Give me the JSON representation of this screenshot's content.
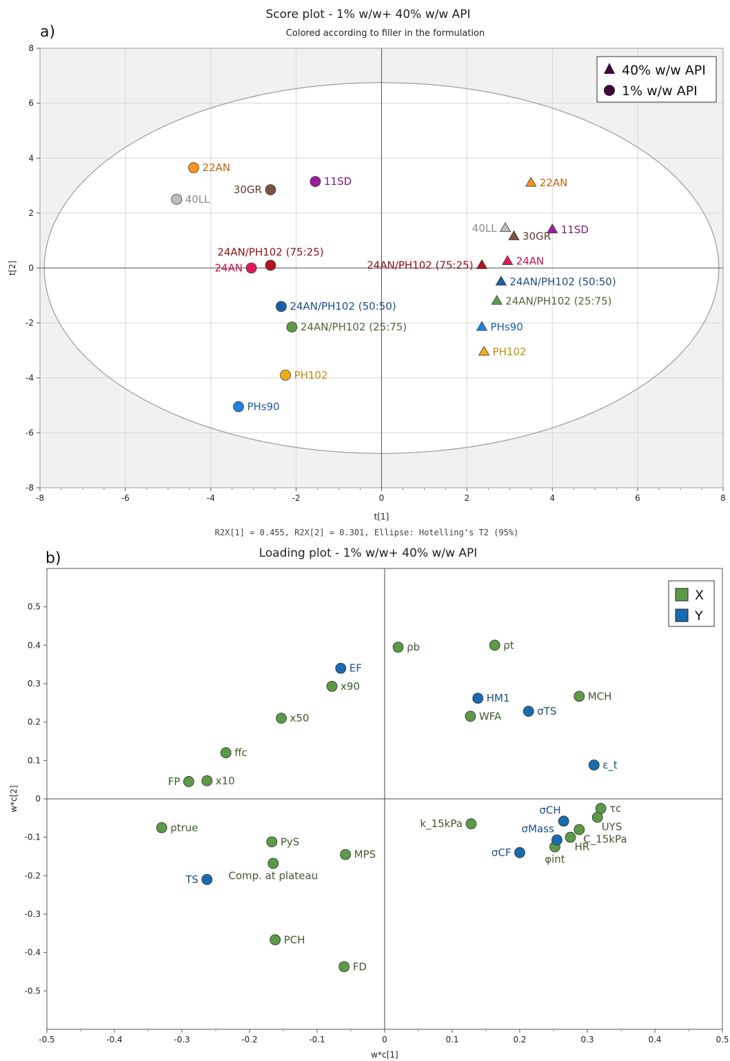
{
  "chart_data": [
    {
      "panel_label": "a)",
      "type": "scatter",
      "title": "Score plot - 1% w/w+ 40% w/w API",
      "subtitle": "Colored according to filler in the formulation",
      "xlabel": "t[1]",
      "ylabel": "t[2]",
      "xlim": [
        -8,
        8
      ],
      "ylim": [
        -8,
        8
      ],
      "xticks": [
        "-8",
        "-6",
        "-4",
        "-2",
        "0",
        "2",
        "4",
        "6",
        "8"
      ],
      "yticks": [
        "8",
        "6",
        "4",
        "2",
        "0",
        "-2",
        "-4",
        "-6",
        "-8"
      ],
      "footnote": "R2X[1] = 0.455, R2X[2] = 0.301, Ellipse: Hotelling's T2 (95%)",
      "ellipse": {
        "rx": 7.9,
        "ry": 6.75
      },
      "grid": true,
      "legend_position": "top-right",
      "legend": [
        {
          "label": "40% w/w API",
          "marker": "triangle",
          "color": "#3d0a3a"
        },
        {
          "label": "1% w/w API",
          "marker": "circle",
          "color": "#3d0a3a"
        }
      ],
      "series": [
        {
          "name": "1% w/w API",
          "marker": "circle",
          "points": [
            {
              "label": "22AN",
              "x": -4.4,
              "y": 3.65,
              "color": "#f7941d",
              "text_color": "#c0650a",
              "anchor": "right"
            },
            {
              "label": "40LL",
              "x": -4.8,
              "y": 2.5,
              "color": "#bdbdbd",
              "text_color": "#8a8a8a",
              "anchor": "right"
            },
            {
              "label": "30GR",
              "x": -2.6,
              "y": 2.85,
              "color": "#7b5343",
              "text_color": "#5e3a2c",
              "anchor": "left"
            },
            {
              "label": "11SD",
              "x": -1.55,
              "y": 3.15,
              "color": "#9a1d9b",
              "text_color": "#7a1a7a",
              "anchor": "right"
            },
            {
              "label": "24AN/PH102 (75:25)",
              "x": -2.6,
              "y": 0.1,
              "color": "#b5121b",
              "text_color": "#8f1010",
              "anchor": "above"
            },
            {
              "label": "24AN",
              "x": -3.05,
              "y": 0.0,
              "color": "#e4175c",
              "text_color": "#c2134e",
              "anchor": "left"
            },
            {
              "label": "24AN/PH102 (50:50)",
              "x": -2.35,
              "y": -1.4,
              "color": "#1a5fa8",
              "text_color": "#1a4f8a",
              "anchor": "right"
            },
            {
              "label": "24AN/PH102 (25:75)",
              "x": -2.1,
              "y": -2.15,
              "color": "#5c9a47",
              "text_color": "#4a6a35",
              "anchor": "right"
            },
            {
              "label": "PH102",
              "x": -2.25,
              "y": -3.9,
              "color": "#f2ad14",
              "text_color": "#c78d0c",
              "anchor": "right"
            },
            {
              "label": "PHs90",
              "x": -3.35,
              "y": -5.05,
              "color": "#1f82e0",
              "text_color": "#1a5fa8",
              "anchor": "right"
            }
          ]
        },
        {
          "name": "40% w/w API",
          "marker": "triangle",
          "points": [
            {
              "label": "22AN",
              "x": 3.5,
              "y": 3.1,
              "color": "#f7941d",
              "text_color": "#c0650a",
              "anchor": "right"
            },
            {
              "label": "40LL",
              "x": 2.9,
              "y": 1.45,
              "color": "#bdbdbd",
              "text_color": "#8a8a8a",
              "anchor": "left"
            },
            {
              "label": "30GR",
              "x": 3.1,
              "y": 1.15,
              "color": "#7b5343",
              "text_color": "#5e3a2c",
              "anchor": "right"
            },
            {
              "label": "11SD",
              "x": 4.0,
              "y": 1.4,
              "color": "#9a1d9b",
              "text_color": "#7a1a7a",
              "anchor": "right"
            },
            {
              "label": "24AN/PH102 (75:25)",
              "x": 2.35,
              "y": 0.1,
              "color": "#b5121b",
              "text_color": "#8f1010",
              "anchor": "left"
            },
            {
              "label": "24AN",
              "x": 2.95,
              "y": 0.25,
              "color": "#e4175c",
              "text_color": "#c2134e",
              "anchor": "right"
            },
            {
              "label": "24AN/PH102 (50:50)",
              "x": 2.8,
              "y": -0.5,
              "color": "#1a5fa8",
              "text_color": "#1a4f8a",
              "anchor": "right"
            },
            {
              "label": "24AN/PH102 (25:75)",
              "x": 2.7,
              "y": -1.2,
              "color": "#5c9a47",
              "text_color": "#4a6a35",
              "anchor": "right"
            },
            {
              "label": "PHs90",
              "x": 2.35,
              "y": -2.15,
              "color": "#1f82e0",
              "text_color": "#1a5fa8",
              "anchor": "right"
            },
            {
              "label": "PH102",
              "x": 2.4,
              "y": -3.05,
              "color": "#f2ad14",
              "text_color": "#c78d0c",
              "anchor": "right"
            }
          ]
        }
      ]
    },
    {
      "panel_label": "b)",
      "type": "scatter",
      "title": "Loading plot - 1% w/w+ 40% w/w API",
      "xlabel": "w*c[1]",
      "ylabel": "w*c[2]",
      "xlim": [
        -0.5,
        0.5
      ],
      "ylim": [
        -0.6,
        0.6
      ],
      "xticks": [
        "-0.5",
        "-0.4",
        "-0.3",
        "-0.2",
        "-0.1",
        "0",
        "0.1",
        "0.2",
        "0.3",
        "0.4",
        "0.5"
      ],
      "yticks": [
        "0.5",
        "0.4",
        "0.3",
        "0.2",
        "0.1",
        "0",
        "-0.1",
        "-0.2",
        "-0.3",
        "-0.4",
        "-0.5"
      ],
      "grid": false,
      "legend_position": "top-right",
      "legend": [
        {
          "label": "X",
          "color": "#5c9a47"
        },
        {
          "label": "Y",
          "color": "#1a6bb0"
        }
      ],
      "series": [
        {
          "name": "X",
          "color": "#5c9a47",
          "text_color": "#3e5a2c",
          "points": [
            {
              "label": "ρb",
              "x": 0.02,
              "y": 0.395,
              "anchor": "right"
            },
            {
              "label": "ρt",
              "x": 0.163,
              "y": 0.4,
              "anchor": "right"
            },
            {
              "label": "x90",
              "x": -0.078,
              "y": 0.293,
              "anchor": "right"
            },
            {
              "label": "MCH",
              "x": 0.288,
              "y": 0.267,
              "anchor": "right"
            },
            {
              "label": "WFA",
              "x": 0.127,
              "y": 0.215,
              "anchor": "right"
            },
            {
              "label": "x50",
              "x": -0.153,
              "y": 0.21,
              "anchor": "right"
            },
            {
              "label": "ffc",
              "x": -0.235,
              "y": 0.12,
              "anchor": "right"
            },
            {
              "label": "FP",
              "x": -0.29,
              "y": 0.045,
              "anchor": "left"
            },
            {
              "label": "x10",
              "x": -0.263,
              "y": 0.047,
              "anchor": "right"
            },
            {
              "label": "τc",
              "x": 0.32,
              "y": -0.025,
              "anchor": "right"
            },
            {
              "label": "UYS",
              "x": 0.315,
              "y": -0.048,
              "anchor": "below-right"
            },
            {
              "label": "C_15kPa",
              "x": 0.288,
              "y": -0.08,
              "anchor": "below-right"
            },
            {
              "label": "HR",
              "x": 0.275,
              "y": -0.1,
              "anchor": "below-right"
            },
            {
              "label": "φint",
              "x": 0.252,
              "y": -0.125,
              "anchor": "below"
            },
            {
              "label": "k_15kPa",
              "x": 0.128,
              "y": -0.065,
              "anchor": "left"
            },
            {
              "label": "ρtrue",
              "x": -0.33,
              "y": -0.075,
              "anchor": "right"
            },
            {
              "label": "PyS",
              "x": -0.167,
              "y": -0.112,
              "anchor": "right"
            },
            {
              "label": "MPS",
              "x": -0.058,
              "y": -0.145,
              "anchor": "right"
            },
            {
              "label": "Comp. at plateau",
              "x": -0.165,
              "y": -0.168,
              "anchor": "below"
            },
            {
              "label": "PCH",
              "x": -0.162,
              "y": -0.367,
              "anchor": "right"
            },
            {
              "label": "FD",
              "x": -0.06,
              "y": -0.437,
              "anchor": "right"
            }
          ]
        },
        {
          "name": "Y",
          "color": "#1a6bb0",
          "text_color": "#1a4f8a",
          "points": [
            {
              "label": "EF",
              "x": -0.065,
              "y": 0.34,
              "anchor": "right"
            },
            {
              "label": "HM1",
              "x": 0.138,
              "y": 0.262,
              "anchor": "right"
            },
            {
              "label": "σTS",
              "x": 0.213,
              "y": 0.228,
              "anchor": "right"
            },
            {
              "label": "ε_t",
              "x": 0.31,
              "y": 0.088,
              "anchor": "right"
            },
            {
              "label": "σCH",
              "x": 0.265,
              "y": -0.058,
              "anchor": "above-left"
            },
            {
              "label": "σMass",
              "x": 0.255,
              "y": -0.107,
              "anchor": "above-left"
            },
            {
              "label": "σCF",
              "x": 0.2,
              "y": -0.14,
              "anchor": "left"
            },
            {
              "label": "TS",
              "x": -0.263,
              "y": -0.21,
              "anchor": "left"
            }
          ]
        }
      ]
    }
  ]
}
